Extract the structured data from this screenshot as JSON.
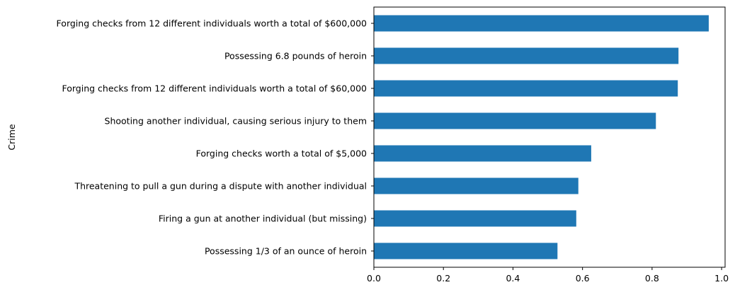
{
  "chart_data": {
    "type": "bar",
    "orientation": "horizontal",
    "title": "",
    "xlabel": "",
    "ylabel": "Crime",
    "categories": [
      "Forging checks from 12 different individuals worth a total of $600,000",
      "Possessing 6.8 pounds of heroin",
      "Forging checks from 12 different individuals worth a total of $60,000",
      "Shooting another individual, causing serious injury to them",
      "Forging checks worth a total of $5,000",
      "Threatening to pull a gun during a dispute with another individual",
      "Firing a gun at another individual (but missing)",
      "Possessing 1/3 of an ounce of heroin"
    ],
    "values": [
      0.963,
      0.876,
      0.874,
      0.811,
      0.625,
      0.588,
      0.582,
      0.528
    ],
    "xlim": [
      0,
      1.01
    ],
    "xticks": [
      "0.0",
      "0.2",
      "0.4",
      "0.6",
      "0.8",
      "1.0"
    ],
    "xtick_values": [
      0,
      0.2,
      0.4,
      0.6,
      0.8,
      1.0
    ],
    "grid": false,
    "legend": "none",
    "bar_color": "#1f77b4"
  }
}
